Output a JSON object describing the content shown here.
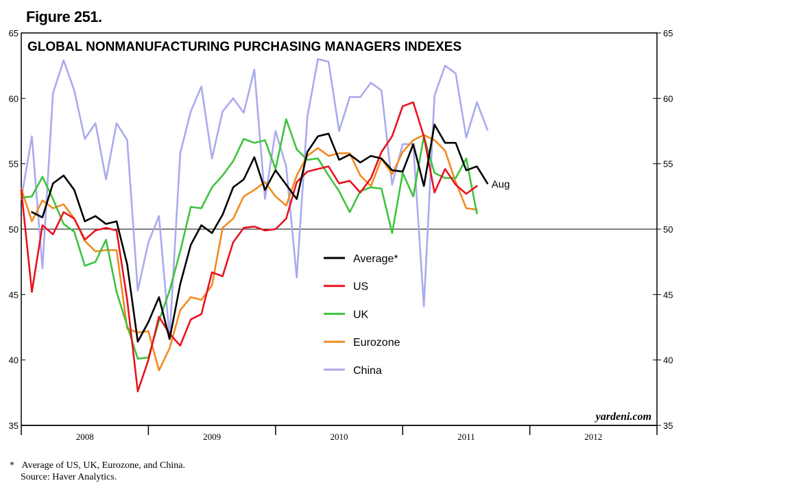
{
  "figure_label": "Figure 251.",
  "footnotes": {
    "asterisk": "*",
    "note": "Average of US, UK, Eurozone, and China.",
    "source": "Source: Haver Analytics."
  },
  "chart_data": {
    "type": "line",
    "title": "GLOBAL NONMANUFACTURING PURCHASING MANAGERS INDEXES",
    "watermark": "yardeni.com",
    "end_label": "Aug",
    "ylim": [
      35,
      65
    ],
    "yticks": [
      35,
      40,
      45,
      50,
      55,
      60,
      65
    ],
    "reference_line": 50,
    "grid": false,
    "legend_position": "center",
    "x_axis": {
      "unit": "month index from Jan 2008",
      "year_labels": [
        "2008",
        "2009",
        "2010",
        "2011",
        "2012"
      ],
      "xlim": [
        0,
        60
      ]
    },
    "series": [
      {
        "name": "Average*",
        "color": "#000000",
        "start_month": 1,
        "values": [
          51.3,
          50.9,
          53.5,
          54.1,
          53.0,
          50.6,
          51.0,
          50.4,
          50.6,
          47.3,
          41.4,
          42.9,
          44.8,
          41.6,
          45.8,
          48.8,
          50.3,
          49.7,
          51.1,
          53.2,
          53.8,
          55.5,
          53.0,
          54.5,
          53.4,
          52.3,
          55.9,
          57.1,
          57.3,
          55.3,
          55.7,
          55.1,
          55.6,
          55.4,
          54.5,
          54.4,
          56.5,
          53.3,
          58.0,
          56.6,
          56.6,
          54.5,
          54.8,
          53.5
        ]
      },
      {
        "name": "US",
        "color": "#e8121e",
        "start_month": 0,
        "values": [
          53.0,
          45.2,
          50.3,
          49.6,
          51.3,
          50.8,
          49.2,
          49.9,
          50.1,
          49.9,
          44.6,
          37.6,
          40.0,
          43.3,
          42.0,
          41.1,
          43.1,
          43.5,
          46.7,
          46.4,
          49.0,
          50.1,
          50.2,
          49.9,
          50.0,
          50.8,
          53.6,
          54.4,
          54.6,
          54.8,
          53.5,
          53.7,
          52.8,
          53.9,
          55.9,
          57.1,
          59.4,
          59.7,
          57.1,
          52.8,
          54.6,
          53.4,
          52.7,
          53.3
        ]
      },
      {
        "name": "UK",
        "color": "#3dc33d",
        "start_month": 0,
        "values": [
          52.4,
          52.5,
          54.0,
          52.3,
          50.4,
          49.8,
          47.2,
          47.5,
          49.2,
          45.2,
          42.6,
          40.1,
          40.2,
          43.0,
          45.3,
          48.3,
          51.7,
          51.6,
          53.2,
          54.1,
          55.2,
          56.9,
          56.6,
          56.8,
          54.6,
          58.4,
          56.1,
          55.3,
          55.4,
          54.1,
          52.9,
          51.3,
          52.9,
          53.2,
          53.1,
          49.7,
          54.3,
          52.5,
          57.1,
          54.3,
          53.9,
          53.9,
          55.4,
          51.2
        ]
      },
      {
        "name": "Eurozone",
        "color": "#f28a1e",
        "start_month": 0,
        "values": [
          53.1,
          50.6,
          52.2,
          51.6,
          51.9,
          50.8,
          49.1,
          48.3,
          48.4,
          48.4,
          42.4,
          42.1,
          42.2,
          39.2,
          40.9,
          43.8,
          44.8,
          44.6,
          45.7,
          50.1,
          50.8,
          52.5,
          53.0,
          53.6,
          52.5,
          51.8,
          54.1,
          55.6,
          56.2,
          55.6,
          55.8,
          55.8,
          54.1,
          53.3,
          55.4,
          54.2,
          55.9,
          56.8,
          57.2,
          56.8,
          56.0,
          53.6,
          51.6,
          51.5
        ]
      },
      {
        "name": "China",
        "color": "#aaaaee",
        "start_month": 0,
        "values": [
          52.3,
          57.1,
          47.0,
          60.4,
          62.9,
          60.6,
          56.9,
          58.1,
          53.8,
          58.1,
          56.8,
          45.3,
          49.0,
          51.0,
          41.7,
          55.8,
          59.0,
          60.9,
          55.4,
          59.0,
          60.0,
          58.9,
          62.2,
          52.3,
          57.5,
          54.8,
          46.3,
          58.6,
          63.0,
          62.8,
          57.5,
          60.1,
          60.1,
          61.2,
          60.6,
          53.4,
          56.5,
          56.5,
          44.1,
          60.2,
          62.5,
          61.9,
          57.0,
          59.7,
          57.6
        ]
      }
    ]
  }
}
